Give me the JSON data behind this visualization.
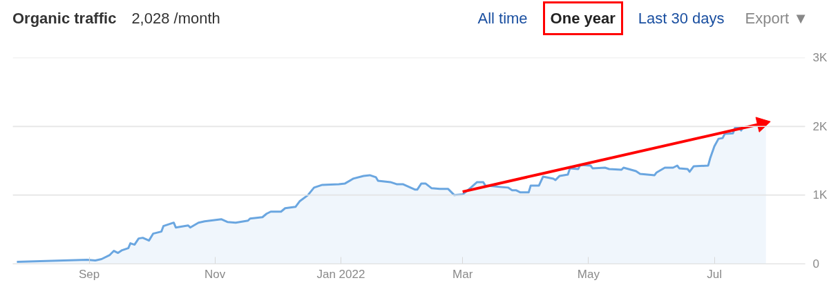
{
  "chart_data": {
    "type": "area",
    "title": "Organic traffic",
    "subtitle": "2,028 /month",
    "annotations": [
      "All time",
      "One year",
      "Last 30 days",
      "Export ▼"
    ],
    "xlim": [
      "2021-07-26",
      "2022-08-14"
    ],
    "xticks": [
      {
        "value": "2021-09-01",
        "label": "Sep"
      },
      {
        "value": "2021-11-01",
        "label": "Nov"
      },
      {
        "value": "2022-01-01",
        "label": "Jan 2022"
      },
      {
        "value": "2022-03-01",
        "label": "Mar"
      },
      {
        "value": "2022-05-01",
        "label": "May"
      },
      {
        "value": "2022-07-01",
        "label": "Jul"
      }
    ],
    "ylim": [
      0,
      3000
    ],
    "yticks": [
      0,
      {
        "value": 1000,
        "label": "1K"
      },
      {
        "value": 2000,
        "label": "2K"
      },
      {
        "value": 3000,
        "label": "3K"
      }
    ],
    "grid": "y",
    "series": [
      {
        "color": "#6aa6e0",
        "x": [
          "2021-07-28",
          "2021-08-31",
          "2021-09-04",
          "2021-09-07",
          "2021-09-11",
          "2021-09-13",
          "2021-09-15",
          "2021-09-17",
          "2021-09-20",
          "2021-09-21",
          "2021-09-23",
          "2021-09-25",
          "2021-09-27",
          "2021-09-30",
          "2021-10-02",
          "2021-10-06",
          "2021-10-07",
          "2021-10-12",
          "2021-10-13",
          "2021-10-19",
          "2021-10-20",
          "2021-10-24",
          "2021-10-27",
          "2021-11-04",
          "2021-11-07",
          "2021-11-11",
          "2021-11-17",
          "2021-11-18",
          "2021-11-24",
          "2021-11-26",
          "2021-11-28",
          "2021-12-03",
          "2021-12-05",
          "2021-12-10",
          "2021-12-12",
          "2021-12-16",
          "2021-12-19",
          "2021-12-23",
          "2021-12-31",
          "2022-01-03",
          "2022-01-07",
          "2022-01-12",
          "2022-01-15",
          "2022-01-18",
          "2022-01-19",
          "2022-01-25",
          "2022-01-28",
          "2022-01-31",
          "2022-02-03",
          "2022-02-06",
          "2022-02-07",
          "2022-02-09",
          "2022-02-11",
          "2022-02-14",
          "2022-02-18",
          "2022-02-22",
          "2022-02-25",
          "2022-03-01",
          "2022-03-05",
          "2022-03-08",
          "2022-03-11",
          "2022-03-12",
          "2022-03-19",
          "2022-03-23",
          "2022-03-25",
          "2022-03-27",
          "2022-03-29",
          "2022-04-02",
          "2022-04-03",
          "2022-04-07",
          "2022-04-09",
          "2022-04-14",
          "2022-04-15",
          "2022-04-17",
          "2022-04-21",
          "2022-04-22",
          "2022-04-26",
          "2022-04-27",
          "2022-05-02",
          "2022-05-03",
          "2022-05-09",
          "2022-05-11",
          "2022-05-17",
          "2022-05-18",
          "2022-05-24",
          "2022-05-26",
          "2022-06-02",
          "2022-06-03",
          "2022-06-07",
          "2022-06-11",
          "2022-06-13",
          "2022-06-14",
          "2022-06-18",
          "2022-06-19",
          "2022-06-21",
          "2022-06-28",
          "2022-06-29",
          "2022-07-01",
          "2022-07-03",
          "2022-07-05",
          "2022-07-06",
          "2022-07-10",
          "2022-07-11",
          "2022-07-13",
          "2022-07-14",
          "2022-07-15",
          "2022-07-20",
          "2022-07-22",
          "2022-07-24",
          "2022-07-26"
        ],
        "values": [
          30,
          60,
          50,
          70,
          130,
          190,
          160,
          200,
          230,
          300,
          280,
          370,
          380,
          340,
          440,
          470,
          550,
          600,
          530,
          560,
          530,
          600,
          620,
          650,
          610,
          600,
          630,
          660,
          680,
          730,
          760,
          760,
          810,
          830,
          910,
          1000,
          1110,
          1150,
          1160,
          1170,
          1240,
          1280,
          1290,
          1260,
          1210,
          1190,
          1160,
          1160,
          1120,
          1080,
          1080,
          1170,
          1170,
          1100,
          1090,
          1090,
          1000,
          1010,
          1110,
          1190,
          1190,
          1140,
          1120,
          1110,
          1070,
          1070,
          1040,
          1040,
          1140,
          1140,
          1270,
          1240,
          1220,
          1280,
          1300,
          1390,
          1380,
          1440,
          1430,
          1390,
          1400,
          1380,
          1370,
          1400,
          1350,
          1310,
          1290,
          1330,
          1400,
          1400,
          1430,
          1390,
          1380,
          1340,
          1420,
          1430,
          1540,
          1710,
          1820,
          1830,
          1890,
          1900,
          1980,
          1980,
          1940,
          2000,
          null,
          1990,
          2030,
          2030
        ]
      },
      {
        "type": "line",
        "color": "#ff0000",
        "x": [
          "2022-03-01",
          "2022-07-24"
        ],
        "values": [
          1050,
          2040
        ]
      }
    ]
  }
}
